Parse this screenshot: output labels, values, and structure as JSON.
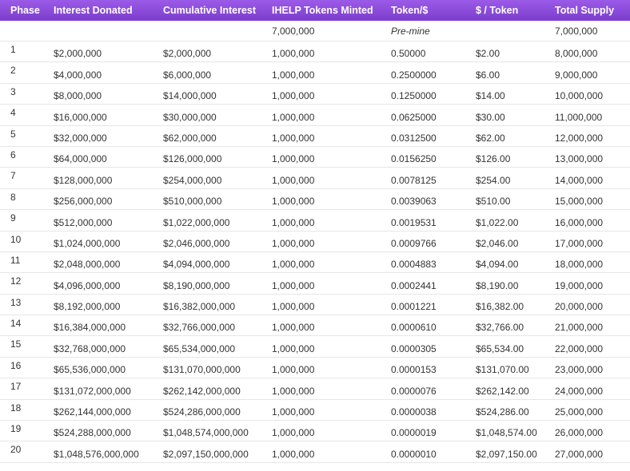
{
  "table": {
    "headers": [
      "Phase",
      "Interest Donated",
      "Cumulative Interest",
      "IHELP Tokens Minted",
      "Token/$",
      "$ / Token",
      "Total Supply"
    ],
    "premine": {
      "phase": "",
      "interest_donated": "",
      "cumulative_interest": "",
      "tokens_minted": "7,000,000",
      "token_per_dollar": "Pre-mine",
      "dollar_per_token": "",
      "total_supply": "7,000,000"
    },
    "rows": [
      [
        "1",
        "$2,000,000",
        "$2,000,000",
        "1,000,000",
        "0.50000",
        "$2.00",
        "8,000,000"
      ],
      [
        "2",
        "$4,000,000",
        "$6,000,000",
        "1,000,000",
        "0.2500000",
        "$6.00",
        "9,000,000"
      ],
      [
        "3",
        "$8,000,000",
        "$14,000,000",
        "1,000,000",
        "0.1250000",
        "$14.00",
        "10,000,000"
      ],
      [
        "4",
        "$16,000,000",
        "$30,000,000",
        "1,000,000",
        "0.0625000",
        "$30.00",
        "11,000,000"
      ],
      [
        "5",
        "$32,000,000",
        "$62,000,000",
        "1,000,000",
        "0.0312500",
        "$62.00",
        "12,000,000"
      ],
      [
        "6",
        "$64,000,000",
        "$126,000,000",
        "1,000,000",
        "0.0156250",
        "$126.00",
        "13,000,000"
      ],
      [
        "7",
        "$128,000,000",
        "$254,000,000",
        "1,000,000",
        "0.0078125",
        "$254.00",
        "14,000,000"
      ],
      [
        "8",
        "$256,000,000",
        "$510,000,000",
        "1,000,000",
        "0.0039063",
        "$510.00",
        "15,000,000"
      ],
      [
        "9",
        "$512,000,000",
        "$1,022,000,000",
        "1,000,000",
        "0.0019531",
        "$1,022.00",
        "16,000,000"
      ],
      [
        "10",
        "$1,024,000,000",
        "$2,046,000,000",
        "1,000,000",
        "0.0009766",
        "$2,046.00",
        "17,000,000"
      ],
      [
        "11",
        "$2,048,000,000",
        "$4,094,000,000",
        "1,000,000",
        "0.0004883",
        "$4,094.00",
        "18,000,000"
      ],
      [
        "12",
        "$4,096,000,000",
        "$8,190,000,000",
        "1,000,000",
        "0.0002441",
        "$8,190.00",
        "19,000,000"
      ],
      [
        "13",
        "$8,192,000,000",
        "$16,382,000,000",
        "1,000,000",
        "0.0001221",
        "$16,382.00",
        "20,000,000"
      ],
      [
        "14",
        "$16,384,000,000",
        "$32,766,000,000",
        "1,000,000",
        "0.0000610",
        "$32,766.00",
        "21,000,000"
      ],
      [
        "15",
        "$32,768,000,000",
        "$65,534,000,000",
        "1,000,000",
        "0.0000305",
        "$65,534.00",
        "22,000,000"
      ],
      [
        "16",
        "$65,536,000,000",
        "$131,070,000,000",
        "1,000,000",
        "0.0000153",
        "$131,070.00",
        "23,000,000"
      ],
      [
        "17",
        "$131,072,000,000",
        "$262,142,000,000",
        "1,000,000",
        "0.0000076",
        "$262,142.00",
        "24,000,000"
      ],
      [
        "18",
        "$262,144,000,000",
        "$524,286,000,000",
        "1,000,000",
        "0.0000038",
        "$524,286.00",
        "25,000,000"
      ],
      [
        "19",
        "$524,288,000,000",
        "$1,048,574,000,000",
        "1,000,000",
        "0.0000019",
        "$1,048,574.00",
        "26,000,000"
      ],
      [
        "20",
        "$1,048,576,000,000",
        "$2,097,150,000,000",
        "1,000,000",
        "0.0000010",
        "$2,097,150.00",
        "27,000,000"
      ]
    ]
  },
  "colors": {
    "header_background": "#8a49d8",
    "header_text": "#ffffff",
    "body_text": "#333333",
    "row_divider": "#e6e6e6"
  }
}
